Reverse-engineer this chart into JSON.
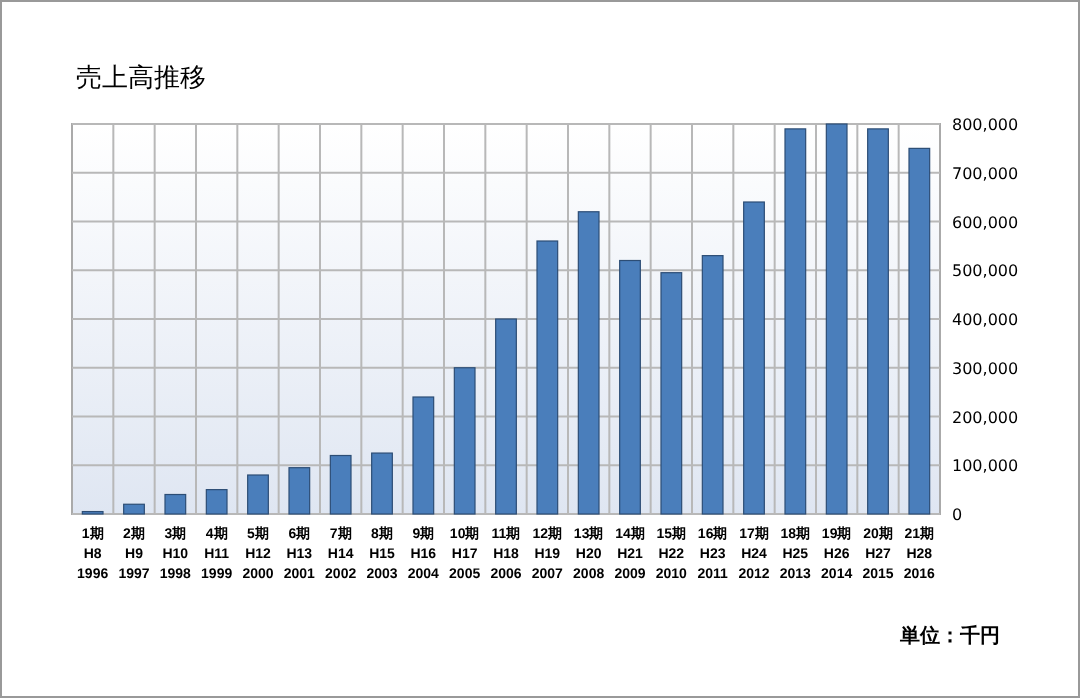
{
  "chart_data": {
    "type": "bar",
    "title": "売上高推移",
    "annotations": [
      "単位：千円"
    ],
    "categories": [
      "1期\nH8\n1996",
      "2期\nH9\n1997",
      "3期\nH10\n1998",
      "4期\nH11\n1999",
      "5期\nH12\n2000",
      "6期\nH13\n2001",
      "7期\nH14\n2002",
      "8期\nH15\n2003",
      "9期\nH16\n2004",
      "10期\nH17\n2005",
      "11期\nH18\n2006",
      "12期\nH19\n2007",
      "13期\nH20\n2008",
      "14期\nH21\n2009",
      "15期\nH22\n2010",
      "16期\nH23\n2011",
      "17期\nH24\n2012",
      "18期\nH25\n2013",
      "19期\nH26\n2014",
      "20期\nH27\n2015",
      "21期\nH28\n2016"
    ],
    "values": [
      5000,
      20000,
      40000,
      50000,
      80000,
      95000,
      120000,
      125000,
      240000,
      300000,
      400000,
      560000,
      620000,
      520000,
      495000,
      530000,
      640000,
      790000,
      800000,
      790000,
      750000
    ],
    "color": "#4a7ebb",
    "ylim": [
      0,
      800000
    ],
    "yticks": [
      {
        "value": 0,
        "label": "0"
      },
      {
        "value": 100000,
        "label": "100,000"
      },
      {
        "value": 200000,
        "label": "200,000"
      },
      {
        "value": 300000,
        "label": "300,000"
      },
      {
        "value": 400000,
        "label": "400,000"
      },
      {
        "value": 500000,
        "label": "500,000"
      },
      {
        "value": 600000,
        "label": "600,000"
      },
      {
        "value": 700000,
        "label": "700,000"
      },
      {
        "value": 800000,
        "label": "800,000"
      }
    ],
    "grid": true
  }
}
